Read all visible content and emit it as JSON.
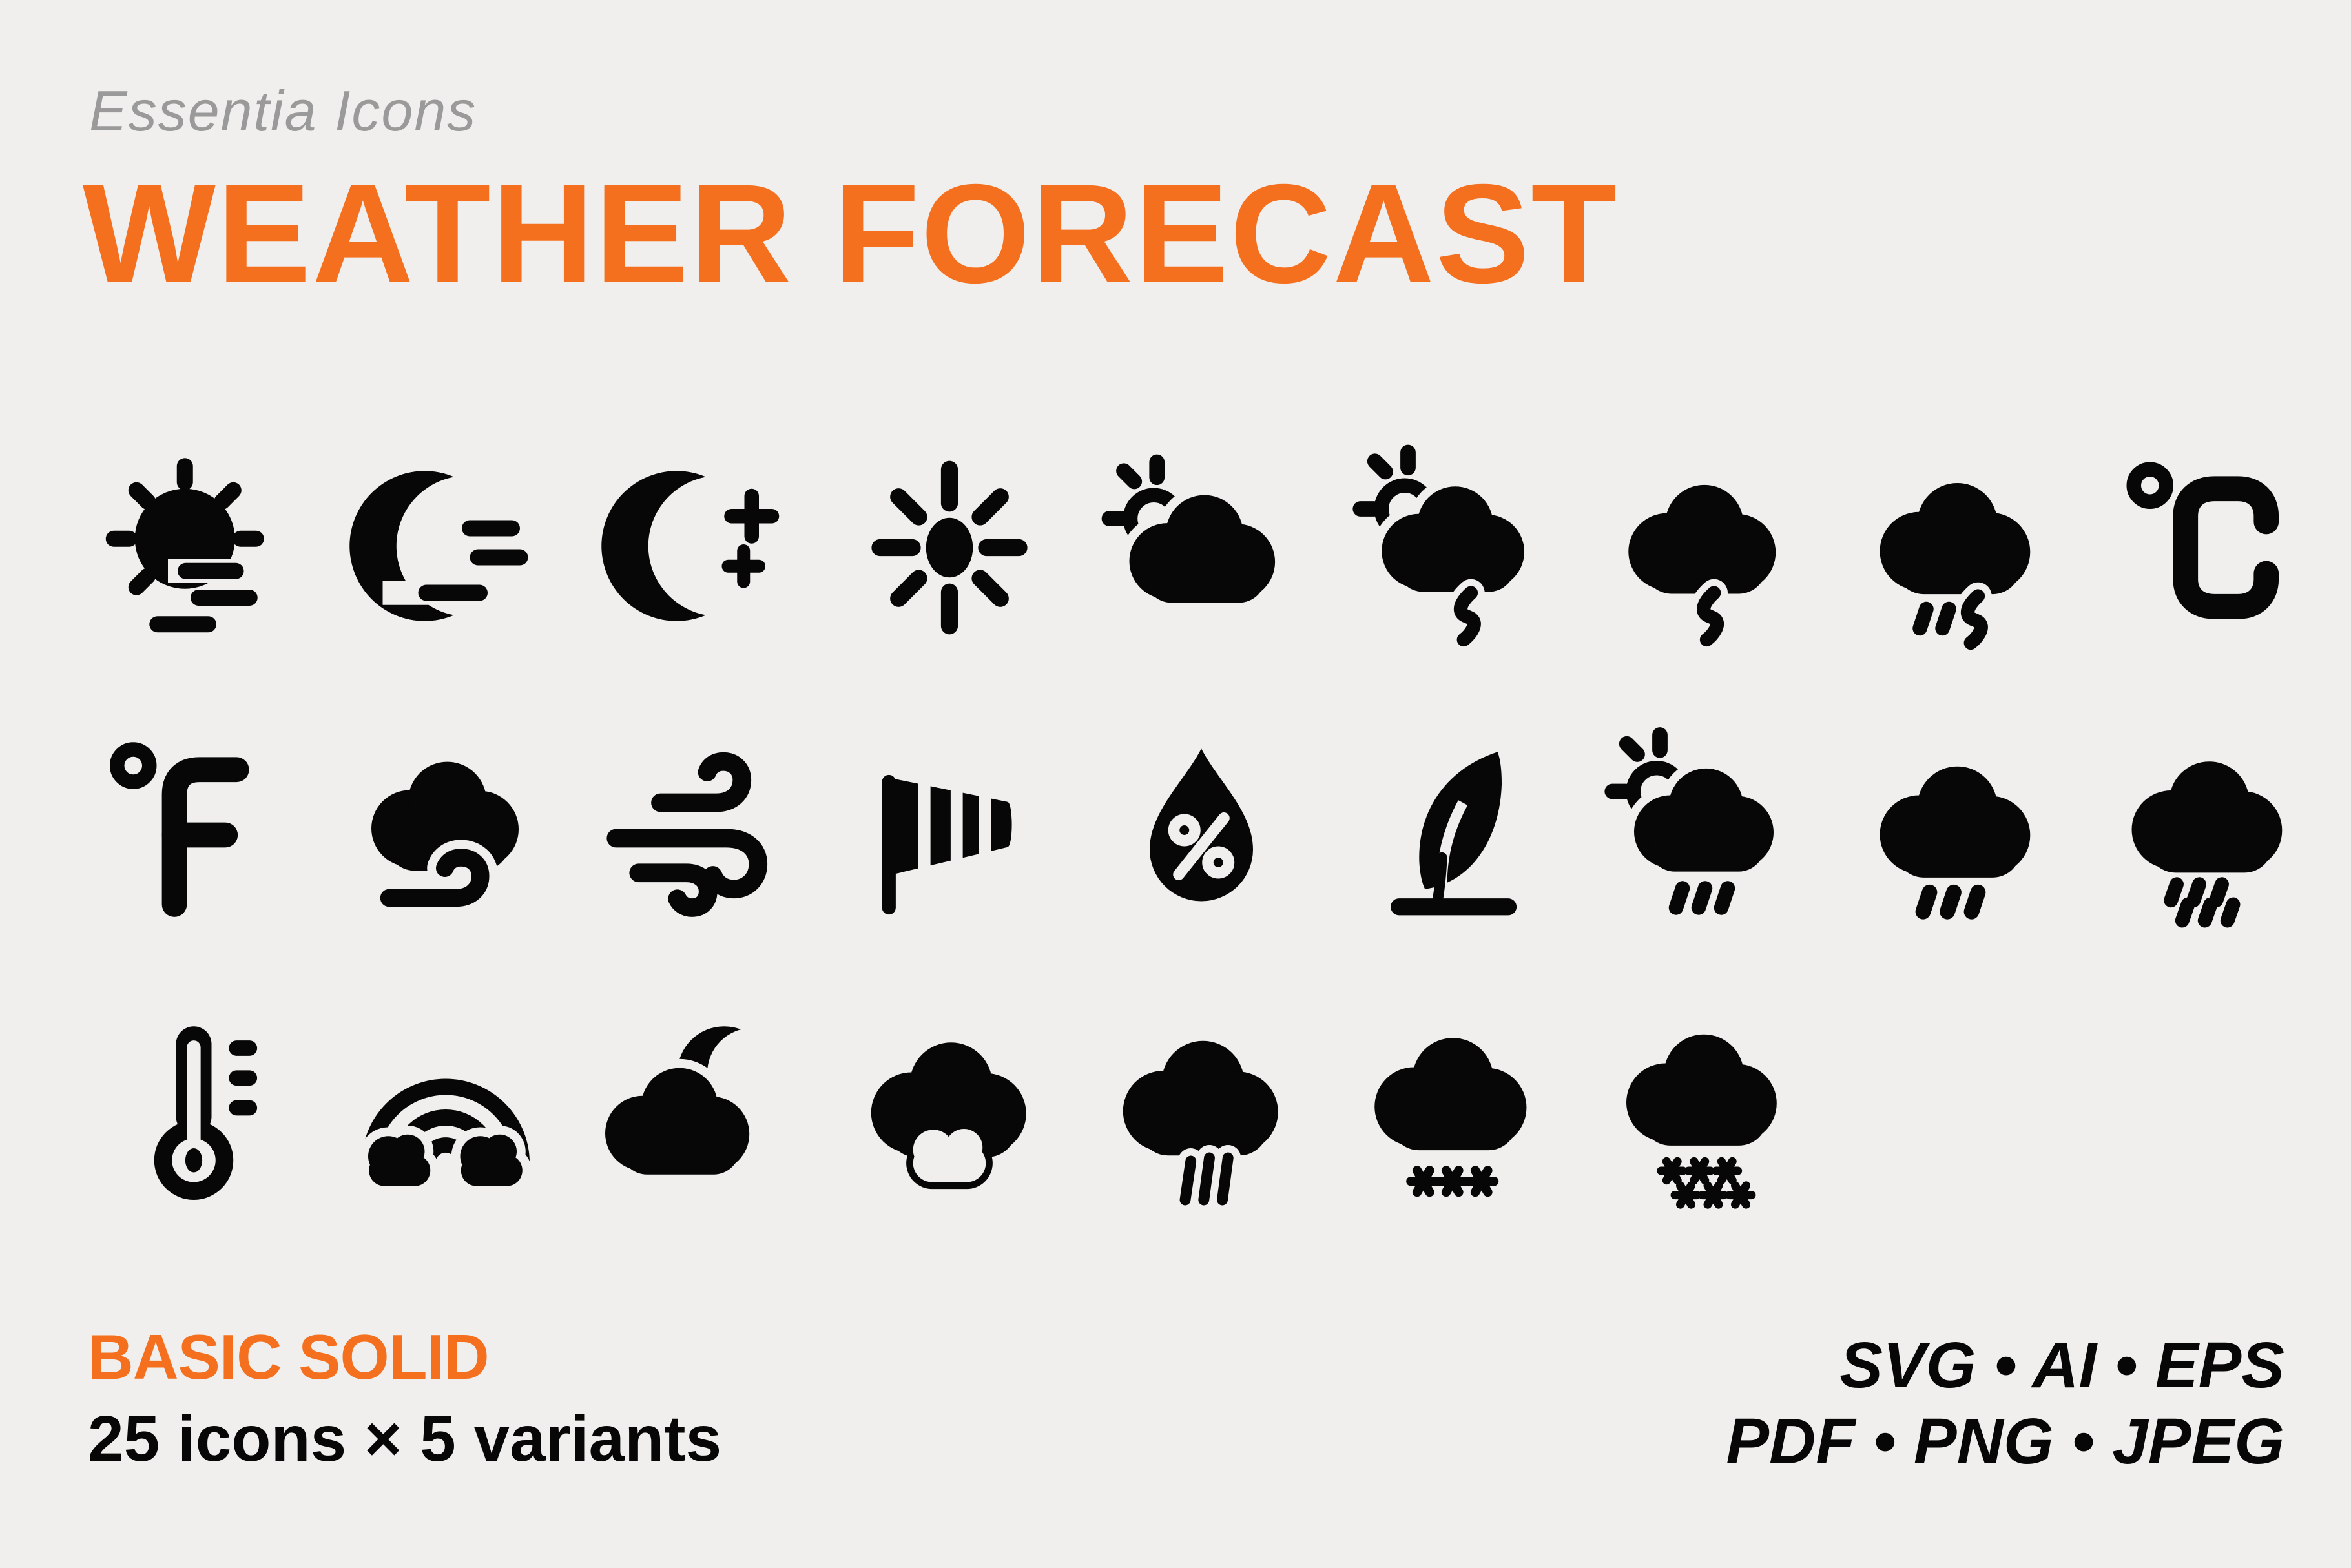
{
  "page": {
    "background": "#f0efed",
    "accent_orange": "#f4701e",
    "muted_gray": "#9a9a9a",
    "icon_color": "#070707"
  },
  "header": {
    "brand": "Essentia Icons",
    "title": "WEATHER FORECAST"
  },
  "icon_grid": {
    "rows": [
      [
        {
          "name": "sun-haze",
          "label": "sun with haze"
        },
        {
          "name": "moon-haze",
          "label": "moon with haze"
        },
        {
          "name": "moon-stars",
          "label": "moon with stars"
        },
        {
          "name": "sun",
          "label": "sun"
        },
        {
          "name": "sun-cloud",
          "label": "sun behind cloud"
        },
        {
          "name": "sun-cloud-lightning",
          "label": "thunderstorm with sun"
        },
        {
          "name": "cloud-lightning",
          "label": "thunderstorm"
        },
        {
          "name": "cloud-lightning-rain",
          "label": "thunderstorm with rain"
        },
        {
          "name": "celsius",
          "label": "degrees celsius"
        }
      ],
      [
        {
          "name": "fahrenheit",
          "label": "degrees fahrenheit"
        },
        {
          "name": "cloud-wind",
          "label": "cloud with wind"
        },
        {
          "name": "wind",
          "label": "wind"
        },
        {
          "name": "windsock",
          "label": "windsock"
        },
        {
          "name": "humidity-drop",
          "label": "humidity droplet with percent"
        },
        {
          "name": "feather",
          "label": "feather"
        },
        {
          "name": "sun-cloud-rain",
          "label": "rain with sun"
        },
        {
          "name": "cloud-rain",
          "label": "rain"
        },
        {
          "name": "cloud-heavy-rain",
          "label": "heavy rain"
        }
      ],
      [
        {
          "name": "thermometer",
          "label": "thermometer"
        },
        {
          "name": "rainbow-clouds",
          "label": "rainbow with clouds"
        },
        {
          "name": "cloud-moon",
          "label": "cloud with moon"
        },
        {
          "name": "cloud-small-cloud",
          "label": "clouds"
        },
        {
          "name": "cloud-downpour",
          "label": "downpour"
        },
        {
          "name": "cloud-snow",
          "label": "snow"
        },
        {
          "name": "cloud-heavy-snow",
          "label": "heavy snow"
        }
      ]
    ]
  },
  "footer": {
    "variant_name": "BASIC SOLID",
    "count_line": "25 icons × 5 variants",
    "formats_line1": "SVG • AI • EPS",
    "formats_line2": "PDF • PNG • JPEG"
  }
}
